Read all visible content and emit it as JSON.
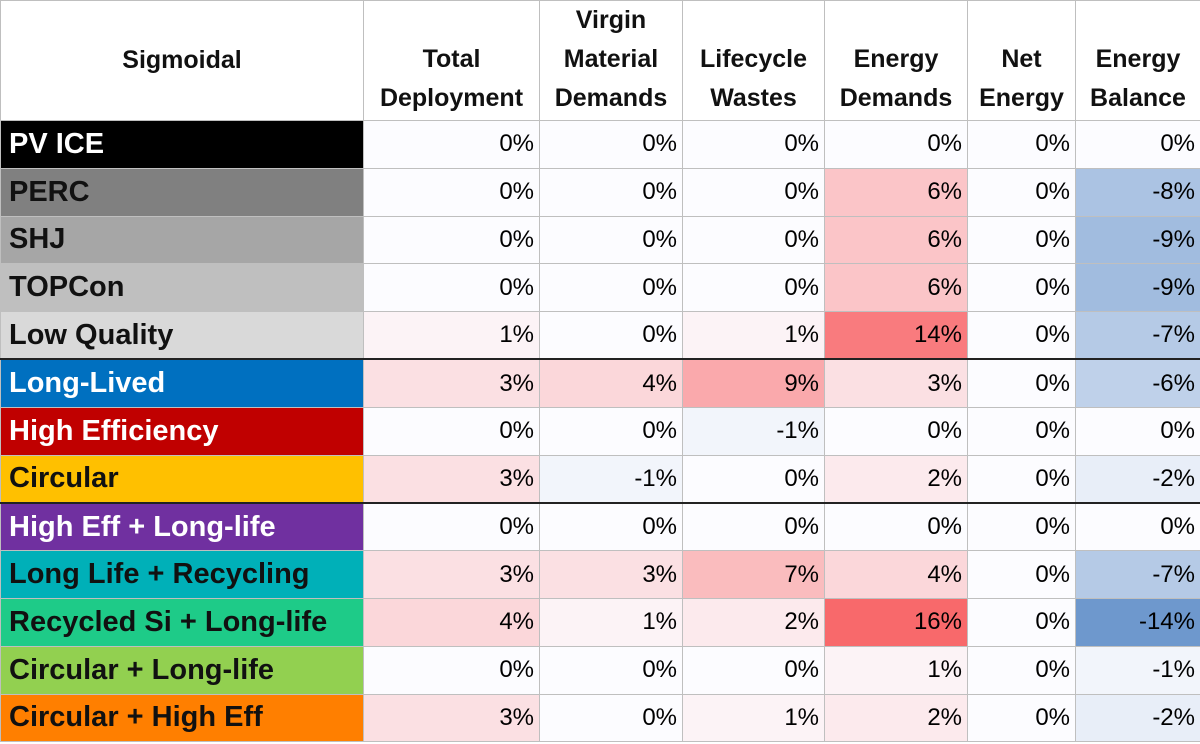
{
  "chart_data": {
    "type": "table",
    "corner_label": "Sigmoidal",
    "columns": [
      [
        "Total",
        "Deployment"
      ],
      [
        "Virgin",
        "Material",
        "Demands"
      ],
      [
        "Lifecycle",
        "Wastes"
      ],
      [
        "Energy",
        "Demands"
      ],
      [
        "Net",
        "Energy"
      ],
      [
        "Energy",
        "Balance"
      ]
    ],
    "rows": [
      {
        "name": "PV ICE",
        "color": "#000000",
        "text_color": "#ffffff",
        "values": [
          0,
          0,
          0,
          0,
          0,
          0
        ]
      },
      {
        "name": "PERC",
        "color": "#808080",
        "text_color": "#111111",
        "values": [
          0,
          0,
          0,
          6,
          0,
          -8
        ]
      },
      {
        "name": "SHJ",
        "color": "#a6a6a6",
        "text_color": "#111111",
        "values": [
          0,
          0,
          0,
          6,
          0,
          -9
        ]
      },
      {
        "name": "TOPCon",
        "color": "#bfbfbf",
        "text_color": "#111111",
        "values": [
          0,
          0,
          0,
          6,
          0,
          -9
        ]
      },
      {
        "name": "Low Quality",
        "color": "#d9d9d9",
        "text_color": "#111111",
        "values": [
          1,
          0,
          1,
          14,
          0,
          -7
        ]
      },
      {
        "name": "Long-Lived",
        "color": "#0070c0",
        "text_color": "#ffffff",
        "values": [
          3,
          4,
          9,
          3,
          0,
          -6
        ]
      },
      {
        "name": "High Efficiency",
        "color": "#c00000",
        "text_color": "#ffffff",
        "values": [
          0,
          0,
          -1,
          0,
          0,
          0
        ]
      },
      {
        "name": "Circular",
        "color": "#ffc000",
        "text_color": "#111111",
        "values": [
          3,
          -1,
          0,
          2,
          0,
          -2
        ]
      },
      {
        "name": "High Eff + Long-life",
        "color": "#7030a0",
        "text_color": "#ffffff",
        "values": [
          0,
          0,
          0,
          0,
          0,
          0
        ]
      },
      {
        "name": "Long Life + Recycling",
        "color": "#00b0b8",
        "text_color": "#111111",
        "values": [
          3,
          3,
          7,
          4,
          0,
          -7
        ]
      },
      {
        "name": "Recycled Si + Long-life",
        "color": "#1ecb88",
        "text_color": "#111111",
        "values": [
          4,
          1,
          2,
          16,
          0,
          -14
        ]
      },
      {
        "name": "Circular + Long-life",
        "color": "#92d050",
        "text_color": "#111111",
        "values": [
          0,
          0,
          0,
          1,
          0,
          -1
        ]
      },
      {
        "name": "Circular + High Eff",
        "color": "#ff7f00",
        "text_color": "#111111",
        "values": [
          3,
          0,
          1,
          2,
          0,
          -2
        ]
      }
    ],
    "value_suffix": "%",
    "heat_colors": {
      "positive": "#f8696b",
      "negative": "#5a8ac6",
      "neutral": "#fcfcff"
    },
    "heat_scale_max": 16,
    "group_breaks_after_row": [
      4,
      7
    ]
  }
}
